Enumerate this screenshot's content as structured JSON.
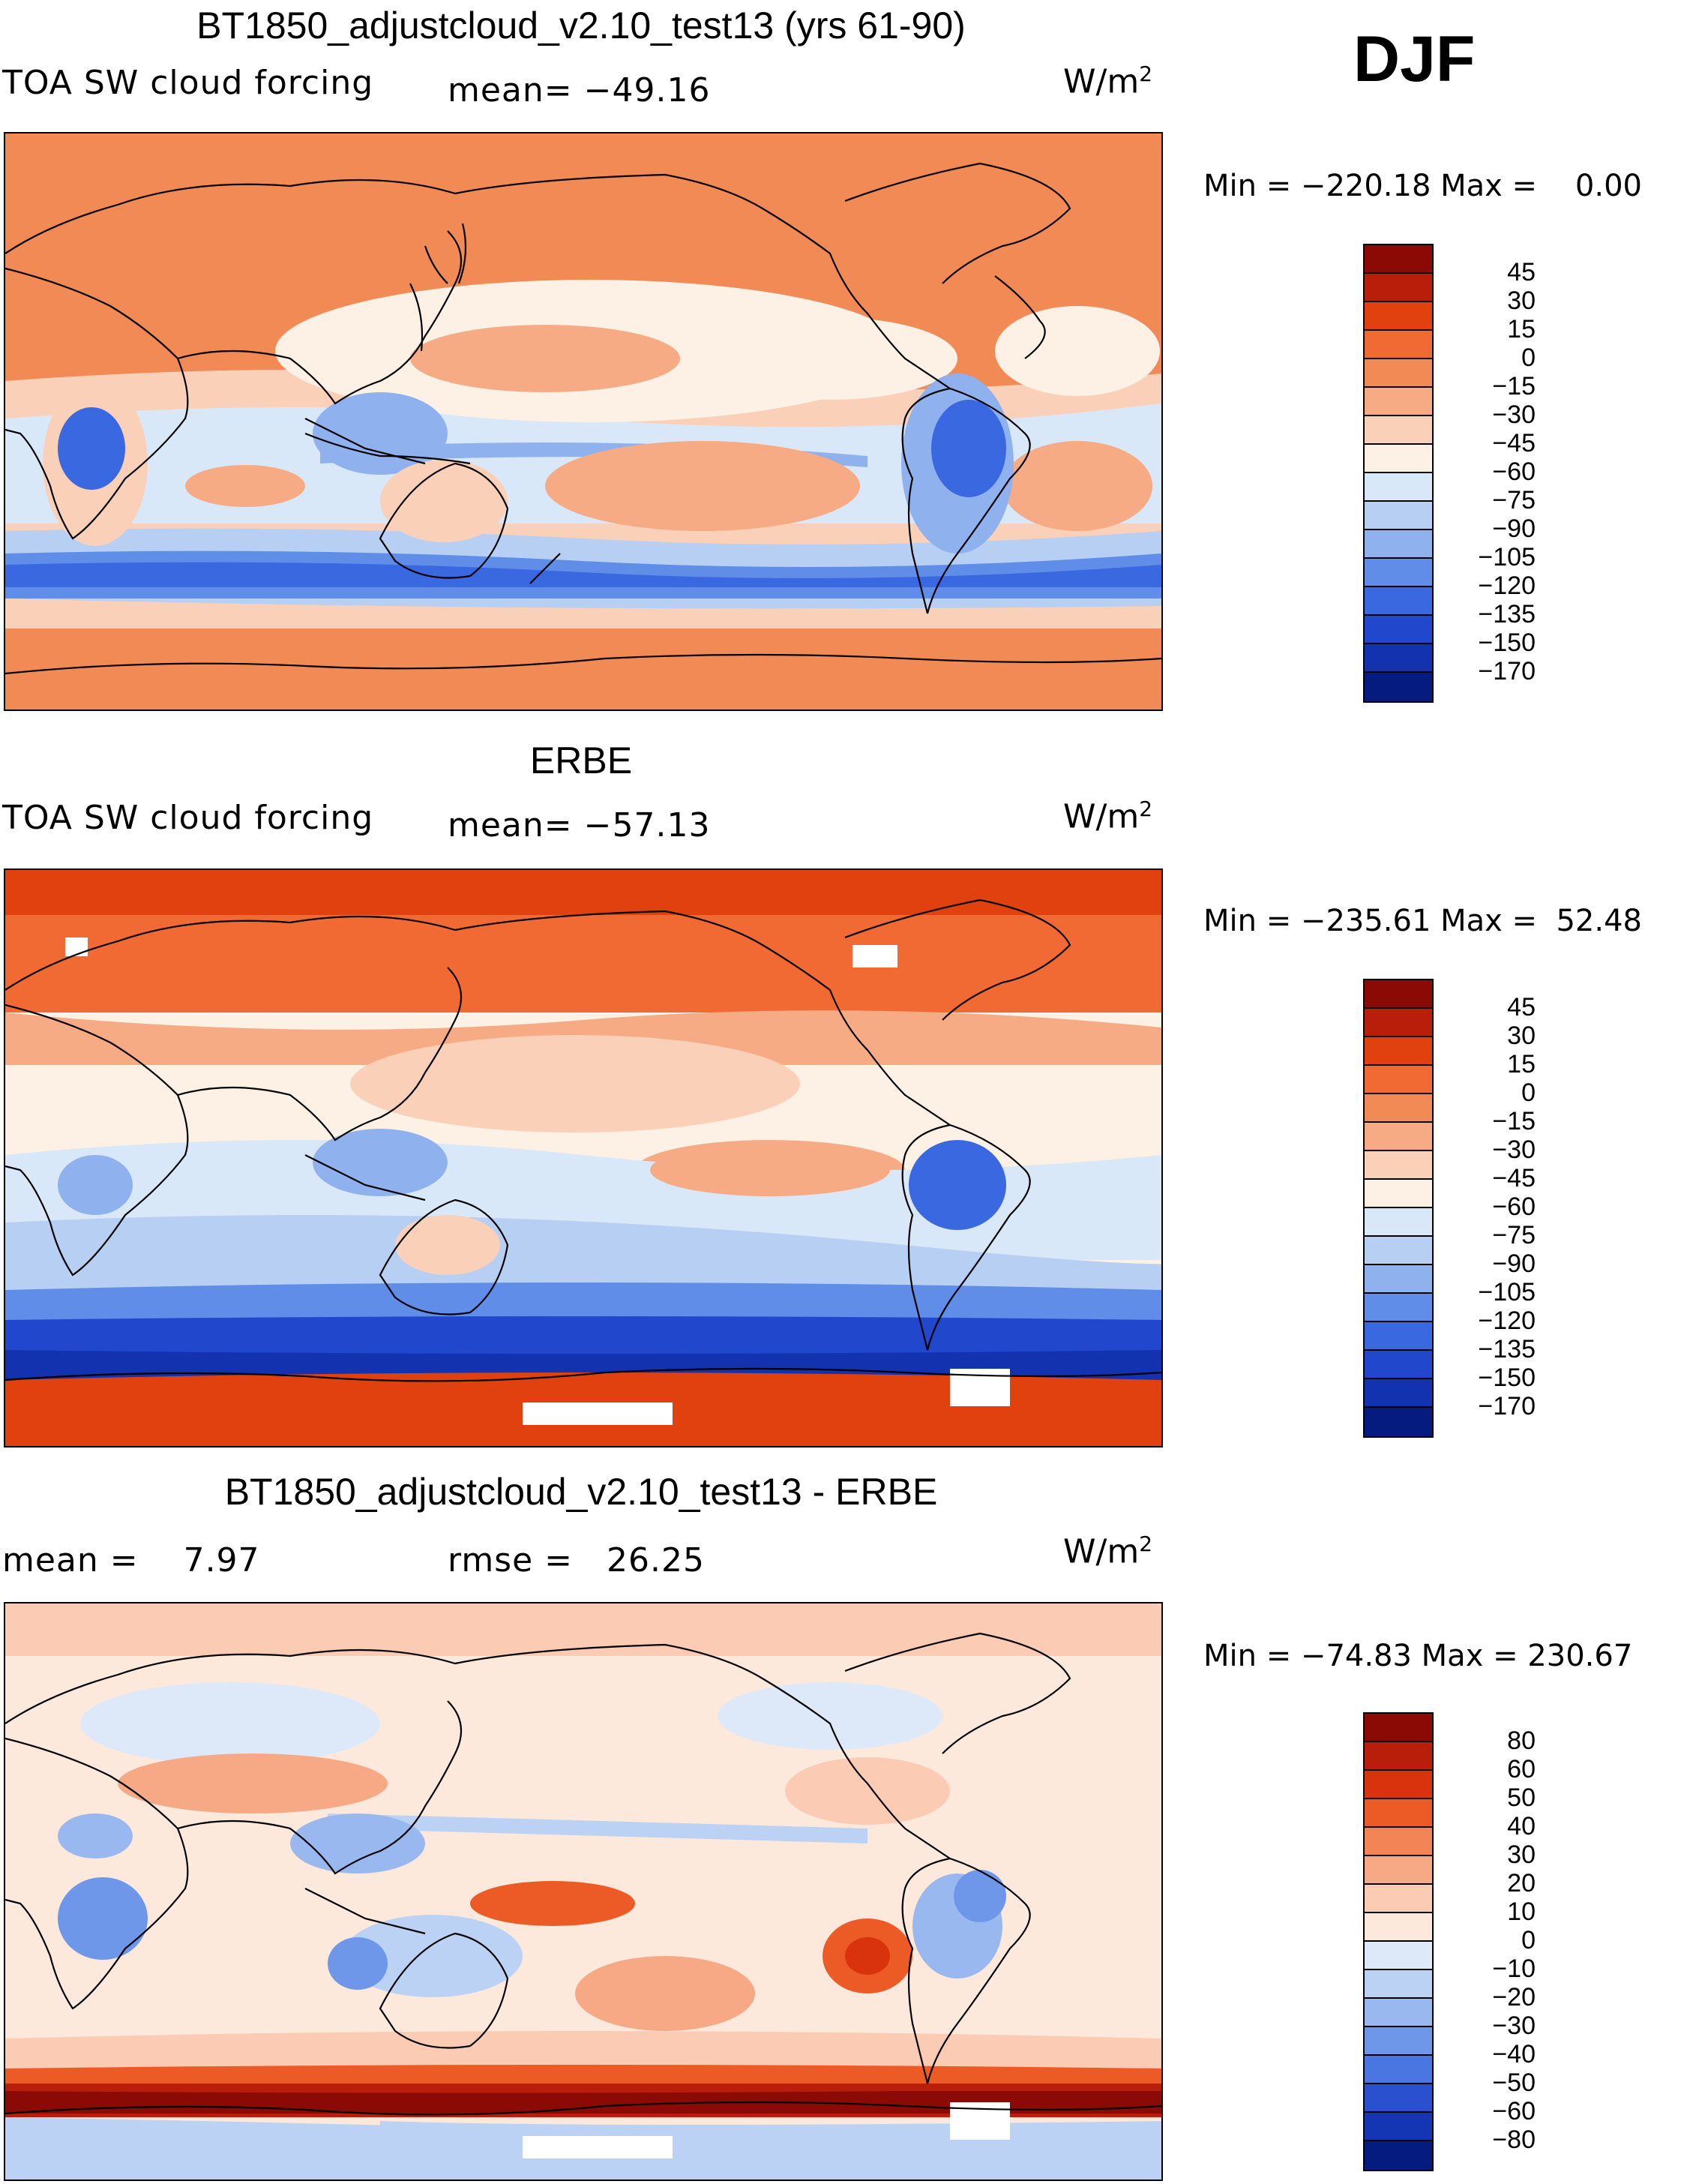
{
  "season": "DJF",
  "colors": {
    "ocean_pos": "#f28a55",
    "warm_mid": "#f7b090",
    "warm_light": "#fcd9c6",
    "cool_light": "#cfe2f7",
    "cool_mid": "#8fb4ee",
    "cool_deep": "#3f6fe3",
    "cool_deepest": "#1a3dc4",
    "red_deep": "#a0180a",
    "coast": "#000000"
  },
  "panels": [
    {
      "title": "BT1850_adjustcloud_v2.10_test13 (yrs 61-90)",
      "left_label": "TOA SW cloud forcing",
      "mid_label": "mean= −49.16",
      "units": "W/m",
      "units_sup": "2",
      "minmax": "Min = −220.18 Max =    0.00",
      "colorbar": {
        "labels": [
          "45",
          "30",
          "15",
          "0",
          "−15",
          "−30",
          "−45",
          "−60",
          "−75",
          "−90",
          "−105",
          "−120",
          "−135",
          "−150",
          "−170"
        ],
        "colors": [
          "#8b0a05",
          "#b81e0a",
          "#e0410f",
          "#f26a33",
          "#f28a55",
          "#f7ab85",
          "#fbd0b8",
          "#fdf0e4",
          "#d9e8f9",
          "#b6cff3",
          "#8fb1ee",
          "#5f8de8",
          "#3a68e0",
          "#2047cc",
          "#1232b0",
          "#061b80"
        ]
      }
    },
    {
      "title": "ERBE",
      "left_label": "TOA SW cloud forcing",
      "mid_label": "mean= −57.13",
      "units": "W/m",
      "units_sup": "2",
      "minmax": "Min = −235.61 Max =  52.48",
      "colorbar": {
        "labels": [
          "45",
          "30",
          "15",
          "0",
          "−15",
          "−30",
          "−45",
          "−60",
          "−75",
          "−90",
          "−105",
          "−120",
          "−135",
          "−150",
          "−170"
        ],
        "colors": [
          "#8b0a05",
          "#b81e0a",
          "#e0410f",
          "#f26a33",
          "#f28a55",
          "#f7ab85",
          "#fbd0b8",
          "#fdf0e4",
          "#d9e8f9",
          "#b6cff3",
          "#8fb1ee",
          "#5f8de8",
          "#3a68e0",
          "#2047cc",
          "#1232b0",
          "#061b80"
        ]
      }
    },
    {
      "title": "BT1850_adjustcloud_v2.10_test13 - ERBE",
      "left_label": "mean =    7.97",
      "mid_label": "rmse =   26.25",
      "units": "W/m",
      "units_sup": "2",
      "minmax": "Min = −74.83 Max = 230.67",
      "colorbar": {
        "labels": [
          "80",
          "60",
          "50",
          "40",
          "30",
          "20",
          "10",
          "0",
          "−10",
          "−20",
          "−30",
          "−40",
          "−50",
          "−60",
          "−80"
        ],
        "colors": [
          "#8b0a05",
          "#b81e0a",
          "#d9330d",
          "#ec5a26",
          "#f28456",
          "#f7a885",
          "#fbcbb3",
          "#fde9dc",
          "#dde9f9",
          "#bcd2f4",
          "#99b8ef",
          "#6f97e9",
          "#4a76e2",
          "#2a50d0",
          "#1536b4",
          "#061b80"
        ]
      }
    }
  ]
}
